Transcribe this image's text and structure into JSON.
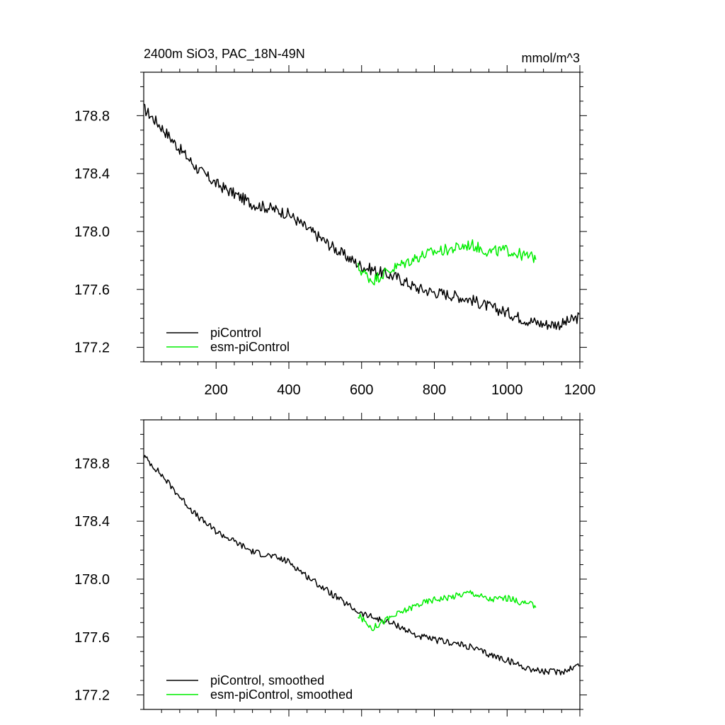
{
  "chart_data": [
    {
      "type": "line",
      "title": "2400m SiO3, PAC_18N-49N",
      "units": "mmol/m^3",
      "xlim": [
        1,
        1200
      ],
      "ylim": [
        177.1,
        179.1
      ],
      "xticks": [
        200,
        400,
        600,
        800,
        1000,
        1200
      ],
      "xtick_labels": [
        "200",
        "400",
        "600",
        "800",
        "1000",
        "1200"
      ],
      "yticks": [
        177.2,
        177.6,
        178.0,
        178.4,
        178.8
      ],
      "ytick_labels": [
        "177.2",
        "177.6",
        "178.0",
        "178.4",
        "178.8"
      ],
      "grid": false,
      "legend_position": "bottom-left",
      "series": [
        {
          "name": "piControl",
          "color": "#000000",
          "x": [
            1,
            50,
            100,
            150,
            200,
            250,
            300,
            350,
            400,
            450,
            500,
            550,
            600,
            650,
            700,
            750,
            800,
            850,
            900,
            950,
            1000,
            1050,
            1100,
            1150,
            1200
          ],
          "y": [
            178.85,
            178.72,
            178.57,
            178.43,
            178.33,
            178.26,
            178.19,
            178.16,
            178.12,
            178.02,
            177.93,
            177.84,
            177.76,
            177.72,
            177.68,
            177.61,
            177.58,
            177.56,
            177.53,
            177.48,
            177.44,
            177.39,
            177.36,
            177.36,
            177.41
          ]
        },
        {
          "name": "esm-piControl",
          "color": "#00ee00",
          "x": [
            590,
            630,
            660,
            700,
            750,
            800,
            850,
            900,
            950,
            1000,
            1050,
            1080
          ],
          "y": [
            177.75,
            177.66,
            177.71,
            177.76,
            177.82,
            177.86,
            177.88,
            177.91,
            177.86,
            177.87,
            177.83,
            177.82
          ]
        }
      ]
    },
    {
      "type": "line",
      "xlim": [
        1,
        1200
      ],
      "ylim": [
        177.1,
        179.1
      ],
      "xticks": [
        200,
        400,
        600,
        800,
        1000,
        1200
      ],
      "yticks": [
        177.2,
        177.6,
        178.0,
        178.4,
        178.8
      ],
      "ytick_labels": [
        "177.2",
        "177.6",
        "178.0",
        "178.4",
        "178.8"
      ],
      "grid": false,
      "legend_position": "bottom-left",
      "series": [
        {
          "name": "piControl, smoothed",
          "color": "#000000",
          "x": [
            1,
            50,
            100,
            150,
            200,
            250,
            300,
            350,
            400,
            450,
            500,
            550,
            600,
            650,
            700,
            750,
            800,
            850,
            900,
            950,
            1000,
            1050,
            1100,
            1150,
            1200
          ],
          "y": [
            178.85,
            178.72,
            178.57,
            178.43,
            178.33,
            178.26,
            178.19,
            178.16,
            178.12,
            178.02,
            177.93,
            177.84,
            177.76,
            177.72,
            177.68,
            177.61,
            177.58,
            177.56,
            177.53,
            177.48,
            177.44,
            177.39,
            177.36,
            177.36,
            177.41
          ]
        },
        {
          "name": "esm-piControl, smoothed",
          "color": "#00ee00",
          "x": [
            590,
            630,
            660,
            700,
            750,
            800,
            850,
            900,
            950,
            1000,
            1050,
            1080
          ],
          "y": [
            177.75,
            177.66,
            177.71,
            177.76,
            177.82,
            177.86,
            177.88,
            177.91,
            177.86,
            177.87,
            177.83,
            177.82
          ]
        }
      ]
    }
  ]
}
